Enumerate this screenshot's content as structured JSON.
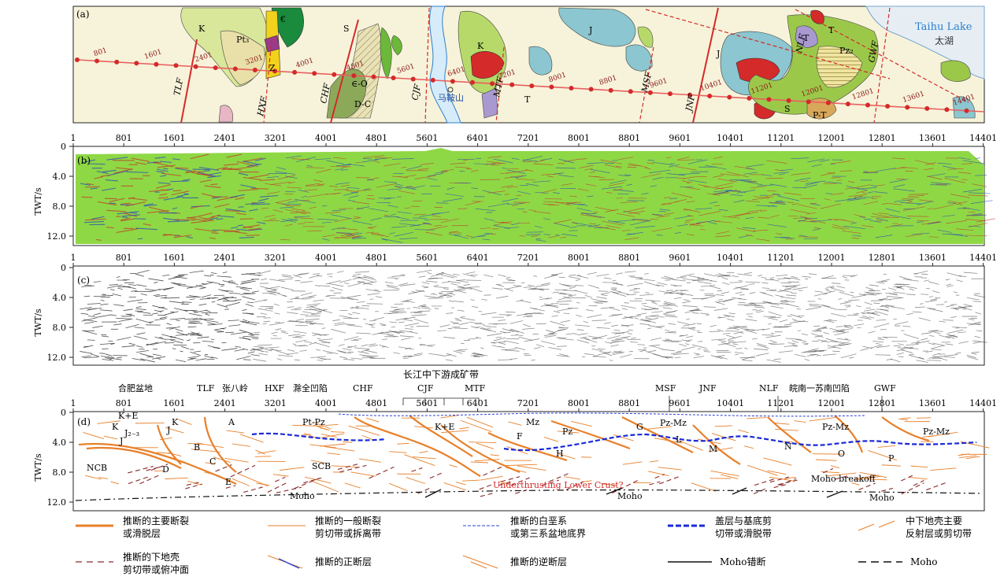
{
  "panel_labels": {
    "a": "(a)",
    "b": "(b)",
    "c": "(c)",
    "d": "(d)"
  },
  "cdp_ticks": [
    "1",
    "801",
    "1601",
    "2401",
    "3201",
    "4001",
    "4801",
    "5601",
    "6401",
    "7201",
    "8001",
    "8801",
    "9601",
    "10401",
    "11201",
    "12001",
    "12801",
    "13601",
    "14401"
  ],
  "twt_axis": {
    "label": "TWT/s",
    "ticks": [
      "0",
      "4.0",
      "8.0",
      "12.0"
    ]
  },
  "map": {
    "lake_en": "Taihu Lake",
    "lake_cn": "太湖",
    "mountain": "马鞍山",
    "fault_labels": [
      "TLF",
      "HXF",
      "CHF",
      "CJF",
      "MTF",
      "MSF",
      "JNF",
      "NLF",
      "GWF"
    ],
    "unit_labels": [
      "K",
      "Pt₃",
      "€",
      "Z",
      "S",
      "∈-O",
      "D-C",
      "K",
      "T",
      "J",
      "J",
      "T",
      "Pz₂",
      "P-T",
      "S",
      "T"
    ],
    "line_cdps": [
      "801",
      "1601",
      "2401",
      "3201",
      "4001",
      "4801",
      "5601",
      "6401",
      "7201",
      "8001",
      "8801",
      "9601",
      "10401",
      "11201",
      "12001",
      "12801",
      "13601",
      "14401"
    ]
  },
  "section_d": {
    "belt_title": "长江中下游成矿带",
    "top_labels": [
      {
        "text": "合肥盆地"
      },
      {
        "text": "TLF"
      },
      {
        "text": "张八岭"
      },
      {
        "text": "HXF"
      },
      {
        "text": "滁全凹陷"
      },
      {
        "text": "CHF"
      },
      {
        "text": "CJF"
      },
      {
        "text": "MTF"
      },
      {
        "text": "MSF"
      },
      {
        "text": "JNF"
      },
      {
        "text": "NLF"
      },
      {
        "text": "皖南一苏南凹陷"
      },
      {
        "text": "GWF"
      }
    ],
    "inner_labels": [
      "K+E",
      "K",
      "J₂₋₃",
      "J",
      "J",
      "K",
      "A",
      "Pt-Pz",
      "K+E",
      "Mz",
      "Pz",
      "G",
      "Pz-Mz",
      "Pz-Mz",
      "Pz-Mz",
      "B",
      "C",
      "D",
      "E",
      "F",
      "H",
      "L",
      "M",
      "N",
      "O",
      "P",
      "NCB",
      "SCB",
      "Moho",
      "Moho",
      "Moho",
      "Moho breakoff"
    ],
    "annotation": "Underthrusting Lower Crust?"
  },
  "legend": [
    {
      "symbol": "main-fault",
      "text1": "推断的主要断裂",
      "text2": "或滑脱层",
      "color": "#e8802a"
    },
    {
      "symbol": "general-fault",
      "text1": "推断的一般断裂",
      "text2": "剪切带或拆离带",
      "color": "#e8802a"
    },
    {
      "symbol": "basin-boundary",
      "text1": "推断的白垩系",
      "text2": "或第三系盆地底界",
      "color": "#2a3fd0"
    },
    {
      "symbol": "detachment",
      "text1": "盖层与基底剪",
      "text2": "切带或滑脱带",
      "color": "#1a2ad6"
    },
    {
      "symbol": "mid-crust",
      "text1": "中下地壳主要",
      "text2": "反射层或剪切带",
      "color": "#e8802a"
    },
    {
      "symbol": "lower-crust",
      "text1": "推断的下地壳",
      "text2": "剪切带或俯冲面",
      "color": "#8a2a2a"
    },
    {
      "symbol": "normal-fault",
      "text1": "推断的正断层",
      "text2": "",
      "color": "#2a3fd0"
    },
    {
      "symbol": "thrust-fault",
      "text1": "推断的逆断层",
      "text2": "",
      "color": "#e8802a"
    },
    {
      "symbol": "moho-offset",
      "text1": "Moho错断",
      "text2": "",
      "color": "#111111"
    },
    {
      "symbol": "moho",
      "text1": "Moho",
      "text2": "",
      "color": "#111111"
    }
  ],
  "colors": {
    "seismic_green": "#8ed845",
    "fault_red": "#d42a2a",
    "fault_orange": "#e8802a",
    "detach_blue": "#1a2ad6",
    "lake_blue": "#e6eef4",
    "map_bg": "#f7f3da"
  }
}
